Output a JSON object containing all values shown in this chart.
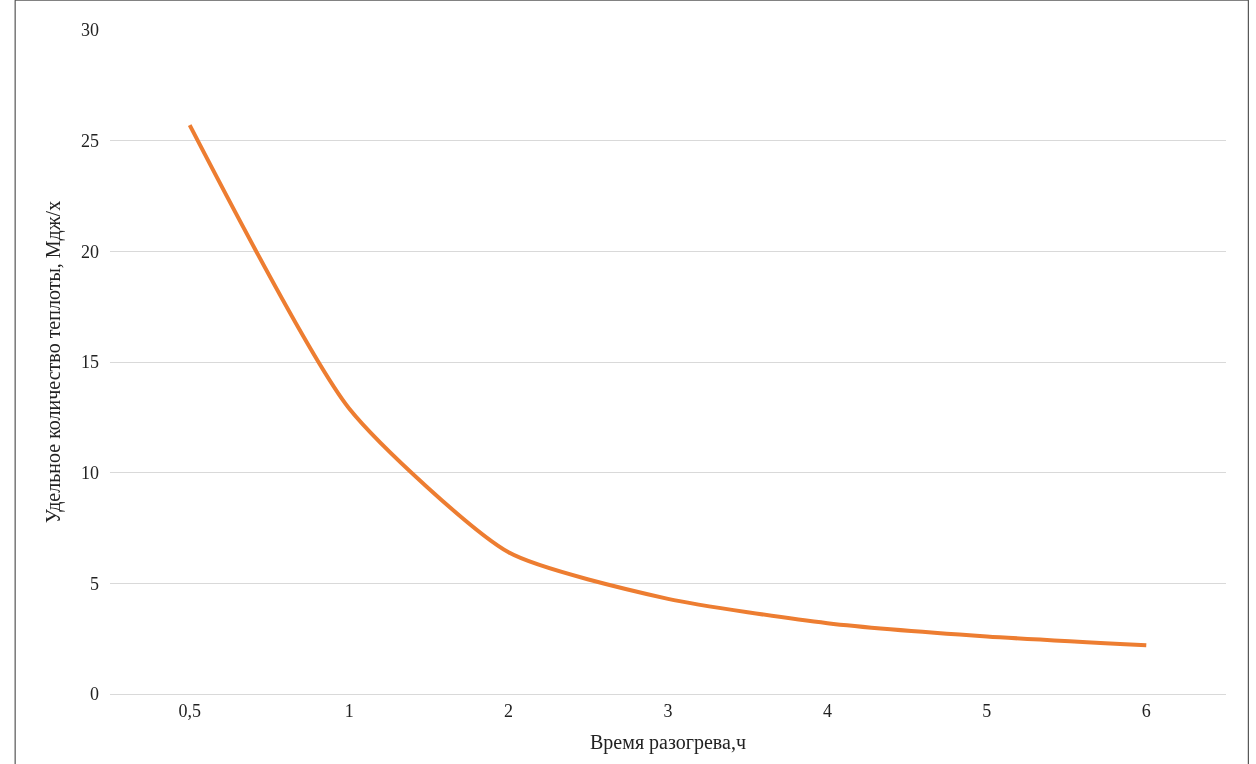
{
  "chart_data": {
    "type": "line",
    "xlabel": "Время разогрева,ч",
    "ylabel": "Удельное количество теплоты, Мдж/х",
    "categories": [
      "0,5",
      "1",
      "2",
      "3",
      "4",
      "5",
      "6"
    ],
    "series": [
      {
        "color": "#ed7d31",
        "values": [
          25.7,
          12.9,
          6.4,
          4.3,
          3.2,
          2.6,
          2.2
        ]
      }
    ],
    "ylim": [
      0,
      30
    ],
    "yticks": [
      0,
      5,
      10,
      15,
      20,
      25,
      30
    ],
    "grid": "y",
    "marker": "none",
    "line_style": "solid"
  }
}
